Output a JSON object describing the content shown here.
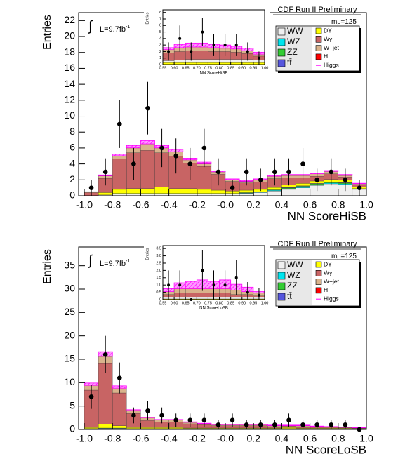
{
  "chart_data": [
    {
      "type": "histogram",
      "header": "CDF Run II Preliminary",
      "mass_label": {
        "symbol": "m",
        "subscript": "H",
        "rest": "=125"
      },
      "lumi_label": {
        "integral": "∫",
        "text": "L=9.7fb",
        "superscript": "-1"
      },
      "xlabel": "NN ScoreHiSB",
      "ylabel": "Entries",
      "bins": [
        -1,
        -0.9,
        -0.8,
        -0.7,
        -0.6,
        -0.5,
        -0.4,
        -0.3,
        -0.2,
        -0.1,
        0,
        0.1,
        0.2,
        0.3,
        0.4,
        0.5,
        0.6,
        0.7,
        0.8,
        0.9,
        1
      ],
      "xlim": [
        -1.04,
        1
      ],
      "ylim": [
        0,
        23
      ],
      "xticks": [
        {
          "value": -1,
          "label": "-1.0"
        },
        -0.8,
        -0.6,
        -0.4,
        -0.2,
        {
          "value": 0,
          "label": "-0.0"
        },
        0.2,
        0.4,
        0.6,
        0.8,
        {
          "value": 1,
          "label": "1.0"
        }
      ],
      "yticks": [
        0,
        2,
        4,
        6,
        8,
        10,
        12,
        14,
        16,
        18,
        20,
        22
      ],
      "legend": "upper right",
      "series": [
        {
          "name": "WW",
          "color": "#f0f0f0",
          "values": [
            0,
            0.1,
            0.2,
            0.2,
            0.2,
            0.2,
            0.2,
            0.2,
            0.2,
            0.2,
            0.2,
            0.3,
            0.4,
            0.6,
            0.8,
            1.0,
            1.3,
            1.5,
            1.4,
            0.8
          ]
        },
        {
          "name": "WZ",
          "color": "#00e5ee",
          "values": [
            0,
            0,
            0.05,
            0.05,
            0.05,
            0.05,
            0.05,
            0.05,
            0.05,
            0.05,
            0.05,
            0.05,
            0.05,
            0.1,
            0.1,
            0.1,
            0.1,
            0.1,
            0.1,
            0.05
          ]
        },
        {
          "name": "ZZ",
          "color": "#33cc33",
          "values": [
            0,
            0,
            0.05,
            0.05,
            0.05,
            0.05,
            0.05,
            0.05,
            0.05,
            0.05,
            0.05,
            0.05,
            0.05,
            0.05,
            0.1,
            0.1,
            0.1,
            0.1,
            0.1,
            0.05
          ]
        },
        {
          "name": "tt̄",
          "color": "#5555dd",
          "values": [
            0,
            0,
            0,
            0,
            0,
            0,
            0,
            0,
            0,
            0,
            0,
            0,
            0,
            0,
            0.05,
            0.05,
            0.05,
            0.05,
            0.05,
            0
          ]
        },
        {
          "name": "DY",
          "color": "#ffff00",
          "values": [
            0,
            0.3,
            0.5,
            0.6,
            0.6,
            0.8,
            0.6,
            0.6,
            0.5,
            0.4,
            0.3,
            0.3,
            0.3,
            0.3,
            0.3,
            0.3,
            0.3,
            0.3,
            0.3,
            0.2
          ]
        },
        {
          "name": "Wγ",
          "color": "#c86464",
          "values": [
            0.4,
            1.8,
            3.8,
            4.5,
            4.8,
            4.3,
            4.1,
            3.2,
            2.9,
            2.0,
            1.2,
            0.9,
            0.9,
            1.1,
            0.9,
            0.7,
            0.6,
            0.7,
            0.4,
            0.3
          ]
        },
        {
          "name": "W+jet",
          "color": "#d9b38c",
          "values": [
            0.1,
            0.3,
            0.4,
            0.6,
            0.8,
            0.6,
            0.5,
            0.4,
            0.3,
            0.3,
            0.2,
            0.2,
            0.3,
            0.3,
            0.3,
            0.3,
            0.3,
            0.3,
            0.2,
            0.1
          ]
        },
        {
          "name": "H",
          "color": "#ff0000",
          "values": [
            0.02,
            0.02,
            0.02,
            0.02,
            0.02,
            0.02,
            0.02,
            0.02,
            0.02,
            0.02,
            0.02,
            0.02,
            0.02,
            0.02,
            0.02,
            0.02,
            0.02,
            0.02,
            0.02,
            0.02
          ]
        },
        {
          "name": "Higgs",
          "color": "#ff00ff",
          "values": [
            0,
            0.1,
            0.2,
            0.3,
            0.4,
            0.3,
            0.3,
            0.2,
            0.2,
            0.1,
            0.1,
            0.1,
            0.1,
            0.1,
            0.1,
            0.1,
            0.1,
            0.1,
            0.1,
            0.05
          ]
        }
      ],
      "data": {
        "values": [
          1,
          3,
          9,
          4,
          11,
          6,
          5,
          4,
          6,
          3,
          1,
          3,
          2,
          3,
          3,
          4,
          2,
          3,
          2,
          1
        ],
        "errors": [
          1,
          1.7,
          3,
          2,
          3.3,
          2.4,
          2.2,
          2,
          2.4,
          1.7,
          1,
          1.7,
          1.4,
          1.7,
          1.7,
          2,
          1.4,
          1.7,
          1.4,
          1
        ]
      },
      "inset": {
        "xlabel": "NN ScoreHiSB",
        "ylabel": "Entries",
        "bins": [
          0.55,
          0.6,
          0.65,
          0.7,
          0.75,
          0.8,
          0.85,
          0.9,
          0.95,
          1
        ],
        "xlim": [
          0.55,
          1
        ],
        "ylim": [
          0,
          8.4
        ],
        "xticks": [
          0.55,
          {
            "value": 0.6,
            "label": "0.60"
          },
          0.65,
          {
            "value": 0.7,
            "label": "0.70"
          },
          0.75,
          {
            "value": 0.8,
            "label": "0.80"
          },
          0.85,
          {
            "value": 0.9,
            "label": "0.90"
          },
          0.95,
          {
            "value": 1,
            "label": "1.00"
          }
        ],
        "yticks": [
          0,
          1,
          2,
          3,
          4,
          5,
          6,
          7,
          8
        ],
        "series": [
          {
            "color": "#ffff00",
            "values": [
              0.3,
              0.3,
              0.3,
              0.3,
              0.3,
              0.3,
              0.3,
              0.3,
              0.3
            ]
          },
          {
            "color": "#f0f0f0",
            "values": [
              0.3,
              0.4,
              0.5,
              0.5,
              0.5,
              0.5,
              0.5,
              0.5,
              0.4
            ]
          },
          {
            "color": "#c86464",
            "values": [
              1.2,
              1.3,
              1.3,
              1.3,
              1.2,
              1.2,
              1.1,
              0.9,
              0.6
            ]
          },
          {
            "color": "#d9b38c",
            "values": [
              0.5,
              0.6,
              0.6,
              0.6,
              0.6,
              0.5,
              0.5,
              0.4,
              0.3
            ]
          },
          {
            "color": "#ff00ff",
            "values": [
              0.3,
              0.5,
              0.6,
              0.6,
              0.5,
              0.5,
              0.4,
              0.4,
              0.3
            ]
          }
        ],
        "data": {
          "values": [
            2,
            4,
            2,
            5,
            3,
            3,
            3,
            2,
            1
          ],
          "errors": [
            1.4,
            2,
            1.4,
            2.2,
            1.7,
            1.7,
            1.7,
            1.4,
            1
          ]
        }
      }
    },
    {
      "type": "histogram",
      "header": "CDF Run II Preliminary",
      "mass_label": {
        "symbol": "m",
        "subscript": "H",
        "rest": "=125"
      },
      "lumi_label": {
        "integral": "∫",
        "text": "L=9.7fb",
        "superscript": "-1"
      },
      "xlabel": "NN ScoreLoSB",
      "ylabel": "Entries",
      "bins": [
        -1,
        -0.9,
        -0.8,
        -0.7,
        -0.6,
        -0.5,
        -0.4,
        -0.3,
        -0.2,
        -0.1,
        0,
        0.1,
        0.2,
        0.3,
        0.4,
        0.5,
        0.6,
        0.7,
        0.8,
        0.9,
        1
      ],
      "xlim": [
        -1.04,
        1
      ],
      "ylim": [
        0,
        39
      ],
      "xticks": [
        {
          "value": -1,
          "label": "-1.0"
        },
        -0.8,
        -0.6,
        -0.4,
        -0.2,
        {
          "value": 0,
          "label": "-0.0"
        },
        0.2,
        0.4,
        0.6,
        0.8,
        {
          "value": 1,
          "label": "1.0"
        }
      ],
      "yticks": [
        0,
        5,
        10,
        15,
        20,
        25,
        30,
        35
      ],
      "legend": "upper right",
      "series": [
        {
          "name": "WW",
          "color": "#f0f0f0",
          "values": [
            0.1,
            0.2,
            0.2,
            0.1,
            0.1,
            0.1,
            0.1,
            0.1,
            0.1,
            0.1,
            0.1,
            0.1,
            0.1,
            0.1,
            0.1,
            0.1,
            0.1,
            0.1,
            0.1,
            0.05
          ]
        },
        {
          "name": "WZ",
          "color": "#00e5ee",
          "values": [
            0.05,
            0.05,
            0.05,
            0.05,
            0.05,
            0.05,
            0.05,
            0.05,
            0.05,
            0.05,
            0.05,
            0.05,
            0.05,
            0.05,
            0.05,
            0.05,
            0.05,
            0.05,
            0.05,
            0.05
          ]
        },
        {
          "name": "ZZ",
          "color": "#33cc33",
          "values": [
            0.05,
            0.05,
            0.05,
            0.05,
            0.05,
            0.05,
            0.05,
            0.05,
            0.05,
            0.05,
            0.05,
            0.05,
            0.05,
            0.05,
            0.05,
            0.05,
            0.05,
            0.05,
            0.05,
            0.05
          ]
        },
        {
          "name": "tt̄",
          "color": "#5555dd",
          "values": [
            0,
            0,
            0,
            0,
            0,
            0,
            0,
            0,
            0,
            0,
            0,
            0,
            0,
            0,
            0,
            0,
            0,
            0,
            0,
            0
          ]
        },
        {
          "name": "DY",
          "color": "#ffff00",
          "values": [
            0.2,
            0.8,
            0.5,
            0.2,
            0.2,
            0.2,
            0.2,
            0.1,
            0.1,
            0.1,
            0.1,
            0.1,
            0.1,
            0.1,
            0.2,
            0.1,
            0.1,
            0.1,
            0.1,
            0.05
          ]
        },
        {
          "name": "Wγ",
          "color": "#c86464",
          "values": [
            8,
            13,
            7,
            3,
            1.5,
            1.2,
            1.2,
            0.9,
            0.7,
            0.5,
            0.5,
            0.5,
            0.5,
            0.3,
            0.3,
            0.3,
            0.2,
            0.2,
            0.1,
            0.1
          ]
        },
        {
          "name": "W+jet",
          "color": "#d9b38c",
          "values": [
            1,
            1.5,
            1,
            0.6,
            0.6,
            0.4,
            0.4,
            0.3,
            0.2,
            0.2,
            0.2,
            0.2,
            0.2,
            0.2,
            0.1,
            0.2,
            0.1,
            0.05,
            0.05,
            0.05
          ]
        },
        {
          "name": "H",
          "color": "#ff0000",
          "values": [
            0.02,
            0.02,
            0.02,
            0.02,
            0.02,
            0.02,
            0.02,
            0.02,
            0.02,
            0.02,
            0.02,
            0.02,
            0.02,
            0.02,
            0.02,
            0.02,
            0.02,
            0.02,
            0.02,
            0.02
          ]
        },
        {
          "name": "Higgs",
          "color": "#ff00ff",
          "values": [
            0.5,
            1,
            0.5,
            0.2,
            0.1,
            0.1,
            0.1,
            0.1,
            0.1,
            0.1,
            0.1,
            0.1,
            0.1,
            0.1,
            0.1,
            0.1,
            0.1,
            0.05,
            0.05,
            0.05
          ]
        }
      ],
      "data": {
        "values": [
          7,
          16,
          11,
          3,
          4,
          3,
          2,
          2,
          2,
          1,
          2,
          1,
          1,
          1,
          2,
          1,
          1,
          1,
          1,
          0
        ],
        "errors": [
          2.6,
          4,
          3.3,
          1.7,
          2,
          1.7,
          1.4,
          1.4,
          1.4,
          1,
          1.4,
          1,
          1,
          1,
          1.4,
          1,
          1,
          1,
          1,
          0
        ]
      },
      "inset": {
        "xlabel": "NN ScoreLoSB",
        "ylabel": "Entries",
        "bins": [
          0.55,
          0.6,
          0.65,
          0.7,
          0.75,
          0.8,
          0.85,
          0.9,
          0.95,
          1
        ],
        "xlim": [
          0.55,
          1
        ],
        "ylim": [
          0,
          3.7
        ],
        "xticks": [
          0.55,
          {
            "value": 0.6,
            "label": "0.60"
          },
          0.65,
          {
            "value": 0.7,
            "label": "0.70"
          },
          0.75,
          {
            "value": 0.8,
            "label": "0.80"
          },
          0.85,
          {
            "value": 0.9,
            "label": "0.90"
          },
          0.95,
          {
            "value": 1,
            "label": "1.00"
          }
        ],
        "yticks": [
          0,
          0.5,
          {
            "value": 1,
            "label": "1.0"
          },
          1.5,
          {
            "value": 2,
            "label": "2.0"
          },
          2.5,
          {
            "value": 3,
            "label": "3.0"
          },
          3.5
        ],
        "series": [
          {
            "color": "#ffff00",
            "values": [
              0.05,
              0.05,
              0.05,
              0.05,
              0.05,
              0.05,
              0.05,
              0.05,
              0.05
            ]
          },
          {
            "color": "#f0f0f0",
            "values": [
              0.1,
              0.1,
              0.1,
              0.1,
              0.1,
              0.1,
              0.1,
              0.1,
              0.1
            ]
          },
          {
            "color": "#c86464",
            "values": [
              0.2,
              0.3,
              0.3,
              0.3,
              0.3,
              0.3,
              0.2,
              0.2,
              0.1
            ]
          },
          {
            "color": "#d9b38c",
            "values": [
              0.2,
              0.3,
              0.3,
              0.3,
              0.3,
              0.3,
              0.3,
              0.2,
              0.2
            ]
          },
          {
            "color": "#ff00ff",
            "values": [
              0.2,
              0.4,
              0.5,
              0.6,
              0.5,
              0.6,
              0.4,
              0.3,
              0.1
            ]
          }
        ],
        "data": {
          "values": [
            1,
            1,
            0,
            2,
            1,
            1,
            1.5,
            0.5,
            0.3
          ],
          "errors": [
            1,
            1,
            0,
            1.4,
            1,
            1,
            1.2,
            0.7,
            0.5
          ]
        }
      }
    }
  ]
}
